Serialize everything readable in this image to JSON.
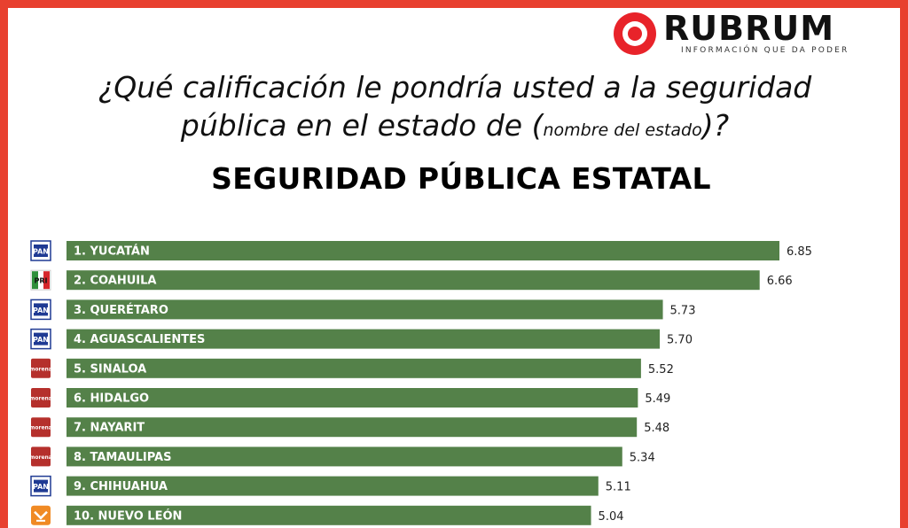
{
  "header": {
    "logo_name": "RUBRUM",
    "logo_tagline": "INFORMACIÓN QUE DA PODER",
    "question_line1": "¿Qué calificación le pondría usted a la seguridad",
    "question_line2_start": "pública en el estado de (",
    "question_line2_small": "nombre del estado",
    "question_line2_end": ")?",
    "title": "SEGURIDAD PÚBLICA ESTATAL"
  },
  "colors": {
    "frame": "#e8402f",
    "bar": "#548149",
    "pan": "#1f3a93",
    "morena": "#b5302c",
    "pri": "#d6262b",
    "mc": "#f08a24"
  },
  "chart_data": {
    "type": "bar",
    "orientation": "horizontal",
    "categories": [
      "1. YUCATÁN",
      "2. COAHUILA",
      "3. QUERÉTARO",
      "4. AGUASCALIENTES",
      "5. SINALOA",
      "6. HIDALGO",
      "7. NAYARIT",
      "8. TAMAULIPAS",
      "9. CHIHUAHUA",
      "10. NUEVO LEÓN"
    ],
    "values": [
      6.85,
      6.66,
      5.73,
      5.7,
      5.52,
      5.49,
      5.48,
      5.34,
      5.11,
      5.04
    ],
    "value_labels": [
      "6.85",
      "6.66",
      "5.73",
      "5.70",
      "5.52",
      "5.49",
      "5.48",
      "5.34",
      "5.11",
      "5.04"
    ],
    "parties": [
      "PAN",
      "PRI",
      "PAN",
      "PAN",
      "morena",
      "morena",
      "morena",
      "morena",
      "PAN",
      "MC"
    ],
    "title": "SEGURIDAD PÚBLICA ESTATAL",
    "xlabel": "",
    "ylabel": "",
    "xlim": [
      0,
      6.85
    ],
    "grid": false,
    "legend": "none"
  }
}
